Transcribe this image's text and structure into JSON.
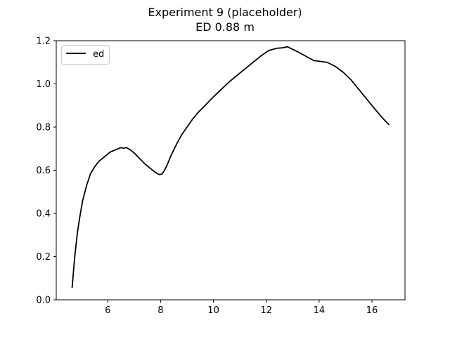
{
  "chart_data": {
    "type": "line",
    "title": "Experiment 9 (placeholder)",
    "subtitle": "ED 0.88 m",
    "xlabel": "",
    "ylabel": "",
    "xlim": [
      4.05,
      17.25
    ],
    "ylim": [
      0.0,
      1.2
    ],
    "xticks": [
      6,
      8,
      10,
      12,
      14,
      16
    ],
    "yticks": [
      0.0,
      0.2,
      0.4,
      0.6,
      0.8,
      1.0,
      1.2
    ],
    "xtick_labels": [
      "6",
      "8",
      "10",
      "12",
      "14",
      "16"
    ],
    "ytick_labels": [
      "0.0",
      "0.2",
      "0.4",
      "0.6",
      "0.8",
      "1.0",
      "1.2"
    ],
    "grid": false,
    "legend_position": "upper-left",
    "series": [
      {
        "name": "ed",
        "color": "#000000",
        "x": [
          4.65,
          4.75,
          4.85,
          4.95,
          5.05,
          5.2,
          5.35,
          5.5,
          5.65,
          5.8,
          5.95,
          6.1,
          6.3,
          6.5,
          6.6,
          6.7,
          6.85,
          7.0,
          7.2,
          7.4,
          7.6,
          7.8,
          7.95,
          8.05,
          8.15,
          8.25,
          8.4,
          8.6,
          8.8,
          9.0,
          9.2,
          9.4,
          9.6,
          9.8,
          10.0,
          10.3,
          10.6,
          11.0,
          11.4,
          11.8,
          12.1,
          12.4,
          12.6,
          12.8,
          13.0,
          13.2,
          13.5,
          13.8,
          14.0,
          14.3,
          14.6,
          14.9,
          15.2,
          15.5,
          15.8,
          16.1,
          16.4,
          16.65
        ],
        "y": [
          0.055,
          0.2,
          0.31,
          0.39,
          0.46,
          0.53,
          0.585,
          0.615,
          0.64,
          0.655,
          0.67,
          0.685,
          0.695,
          0.705,
          0.702,
          0.705,
          0.695,
          0.68,
          0.655,
          0.63,
          0.61,
          0.59,
          0.58,
          0.582,
          0.6,
          0.625,
          0.67,
          0.72,
          0.765,
          0.8,
          0.835,
          0.865,
          0.89,
          0.915,
          0.94,
          0.975,
          1.01,
          1.05,
          1.09,
          1.13,
          1.155,
          1.165,
          1.167,
          1.172,
          1.16,
          1.148,
          1.128,
          1.108,
          1.105,
          1.1,
          1.082,
          1.055,
          1.02,
          0.975,
          0.93,
          0.885,
          0.842,
          0.81
        ]
      }
    ]
  }
}
